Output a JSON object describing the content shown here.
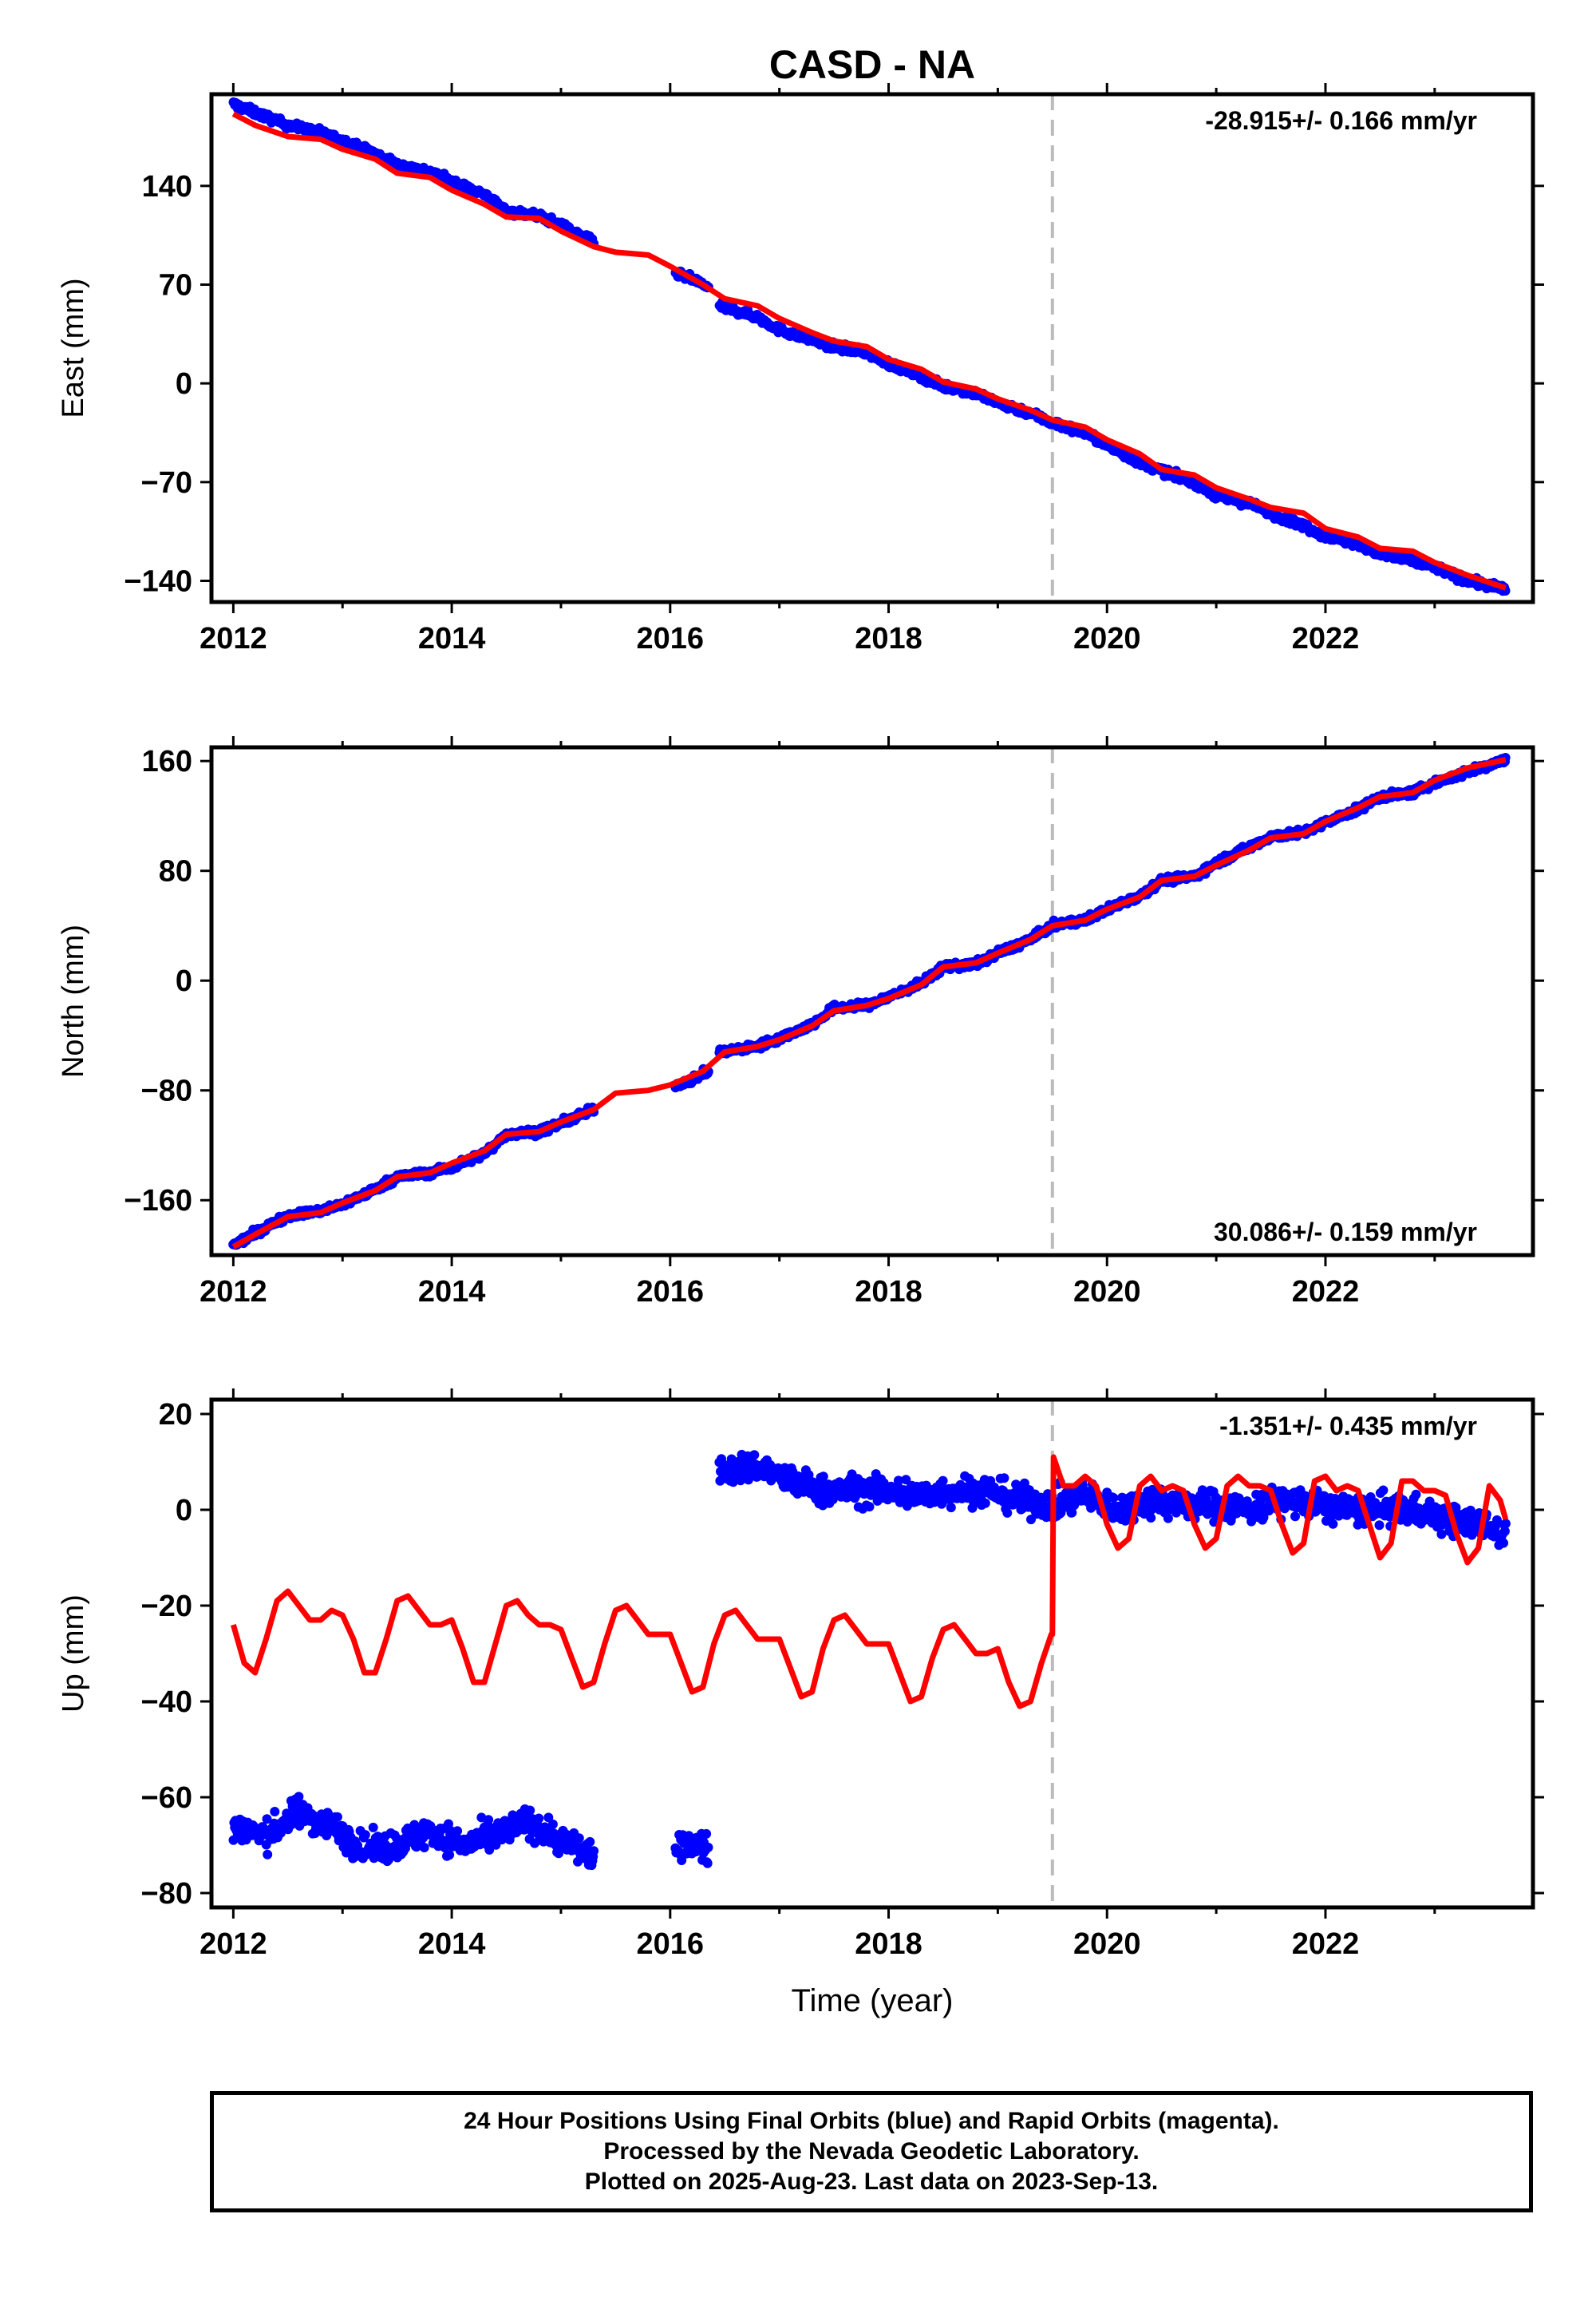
{
  "title": "CASD - NA",
  "footer": {
    "line1": "24 Hour Positions Using Final Orbits (blue) and Rapid Orbits (magenta).",
    "line2": "Processed by the Nevada Geodetic Laboratory.",
    "line3": "Plotted on 2025-Aug-23. Last data on 2023-Sep-13."
  },
  "colors": {
    "points": "#0000ff",
    "model": "#ff0000",
    "event_line": "#bbbbbb",
    "frame": "#000000"
  },
  "chart_data": [
    {
      "type": "scatter",
      "component": "East",
      "ylabel": "East (mm)",
      "xlabel": "",
      "xlim": [
        2011.8,
        2023.9
      ],
      "ylim": [
        -155,
        205
      ],
      "xticks": [
        2012,
        2014,
        2016,
        2018,
        2020,
        2022
      ],
      "yticks": [
        -140,
        -70,
        0,
        70,
        140
      ],
      "rate_label": "-28.915+/- 0.166 mm/yr",
      "rate_label_position": "top-right",
      "event_line_x": 2019.5,
      "grid": false,
      "series": [
        {
          "kind": "points",
          "segments": [
            {
              "x": [
                2012.0,
                2012.2,
                2012.5,
                2012.8,
                2013.0,
                2013.3,
                2013.5,
                2013.8,
                2014.0,
                2014.3,
                2014.5,
                2014.8,
                2015.0,
                2015.3
              ],
              "y": [
                198,
                192,
                183,
                178,
                172,
                163,
                155,
                150,
                143,
                134,
                122,
                119,
                112,
                100
              ]
            },
            {
              "x": [
                2016.05,
                2016.2,
                2016.35
              ],
              "y": [
                78,
                74,
                68
              ]
            },
            {
              "x": [
                2016.45,
                2016.8,
                2017.0,
                2017.3,
                2017.5,
                2017.8,
                2018.0,
                2018.3,
                2018.5,
                2018.8,
                2019.0,
                2019.3,
                2019.5,
                2019.8,
                2020.0,
                2020.3,
                2020.5,
                2020.8,
                2021.0,
                2021.3,
                2021.5,
                2021.8,
                2022.0,
                2022.3,
                2022.5,
                2022.8,
                2023.0,
                2023.3,
                2023.65
              ],
              "y": [
                55,
                47,
                38,
                31,
                26,
                22,
                14,
                5,
                -2,
                -7,
                -14,
                -21,
                -28,
                -35,
                -44,
                -56,
                -62,
                -70,
                -80,
                -85,
                -92,
                -101,
                -108,
                -114,
                -121,
                -126,
                -130,
                -140,
                -146
              ]
            }
          ],
          "noise_mm": 2.5
        },
        {
          "kind": "model_line",
          "x": [
            2012.0,
            2012.2,
            2012.5,
            2012.8,
            2013.0,
            2013.3,
            2013.5,
            2013.8,
            2014.0,
            2014.3,
            2014.5,
            2014.8,
            2015.0,
            2015.3,
            2015.5,
            2015.8,
            2016.0,
            2016.3,
            2016.5,
            2016.8,
            2017.0,
            2017.3,
            2017.5,
            2017.8,
            2018.0,
            2018.3,
            2018.5,
            2018.8,
            2019.0,
            2019.3,
            2019.5,
            2019.8,
            2020.0,
            2020.3,
            2020.5,
            2020.8,
            2021.0,
            2021.3,
            2021.5,
            2021.8,
            2022.0,
            2022.3,
            2022.5,
            2022.8,
            2023.0,
            2023.3,
            2023.65
          ],
          "y": [
            191,
            183,
            175,
            173,
            166,
            159,
            149,
            146,
            137,
            127,
            118,
            117,
            108,
            97,
            93,
            91,
            83,
            70,
            60,
            55,
            46,
            36,
            30,
            26,
            17,
            10,
            1,
            -4,
            -11,
            -19,
            -26,
            -31,
            -40,
            -50,
            -61,
            -65,
            -74,
            -82,
            -88,
            -92,
            -103,
            -109,
            -117,
            -119,
            -127,
            -136,
            -145
          ]
        }
      ]
    },
    {
      "type": "scatter",
      "component": "North",
      "ylabel": "North (mm)",
      "xlabel": "",
      "xlim": [
        2011.8,
        2023.9
      ],
      "ylim": [
        -200,
        170
      ],
      "xticks": [
        2012,
        2014,
        2016,
        2018,
        2020,
        2022
      ],
      "yticks": [
        -160,
        -80,
        0,
        80,
        160
      ],
      "rate_label": "30.086+/- 0.159 mm/yr",
      "rate_label_position": "bottom-right",
      "event_line_x": 2019.5,
      "grid": false,
      "series": [
        {
          "kind": "points",
          "segments": [
            {
              "x": [
                2012.0,
                2012.2,
                2012.5,
                2012.8,
                2013.0,
                2013.3,
                2013.5,
                2013.8,
                2014.0,
                2014.3,
                2014.5,
                2014.8,
                2015.0,
                2015.3
              ],
              "y": [
                -193,
                -184,
                -171,
                -168,
                -163,
                -152,
                -143,
                -140,
                -136,
                -126,
                -112,
                -110,
                -104,
                -94
              ]
            },
            {
              "x": [
                2016.05,
                2016.2,
                2016.35
              ],
              "y": [
                -76,
                -72,
                -66
              ]
            },
            {
              "x": [
                2016.45,
                2016.8,
                2017.0,
                2017.3,
                2017.5,
                2017.8,
                2018.0,
                2018.3,
                2018.5,
                2018.8,
                2019.0,
                2019.3,
                2019.5,
                2019.8,
                2020.0,
                2020.3,
                2020.5,
                2020.8,
                2021.0,
                2021.3,
                2021.5,
                2021.8,
                2022.0,
                2022.3,
                2022.5,
                2022.8,
                2023.0,
                2023.3,
                2023.65
              ],
              "y": [
                -52,
                -48,
                -42,
                -32,
                -20,
                -18,
                -12,
                -2,
                10,
                12,
                20,
                30,
                40,
                44,
                52,
                62,
                73,
                76,
                86,
                97,
                105,
                108,
                115,
                125,
                134,
                137,
                144,
                152,
                161
              ]
            }
          ],
          "noise_mm": 2.5
        },
        {
          "kind": "model_line",
          "x": [
            2012.0,
            2012.2,
            2012.5,
            2012.8,
            2013.0,
            2013.3,
            2013.5,
            2013.8,
            2014.0,
            2014.3,
            2014.5,
            2014.8,
            2015.0,
            2015.3,
            2015.5,
            2015.8,
            2016.0,
            2016.3,
            2016.5,
            2016.8,
            2017.0,
            2017.3,
            2017.5,
            2017.8,
            2018.0,
            2018.3,
            2018.5,
            2018.8,
            2019.0,
            2019.3,
            2019.5,
            2019.8,
            2020.0,
            2020.3,
            2020.5,
            2020.8,
            2021.0,
            2021.3,
            2021.5,
            2021.8,
            2022.0,
            2022.3,
            2022.5,
            2022.8,
            2023.0,
            2023.3,
            2023.65
          ],
          "y": [
            -194,
            -185,
            -172,
            -169,
            -162,
            -153,
            -143,
            -140,
            -133,
            -124,
            -112,
            -110,
            -103,
            -94,
            -82,
            -80,
            -76,
            -66,
            -52,
            -48,
            -43,
            -33,
            -22,
            -18,
            -13,
            -3,
            10,
            13,
            20,
            30,
            40,
            44,
            52,
            61,
            73,
            76,
            84,
            95,
            104,
            107,
            116,
            126,
            134,
            137,
            146,
            155,
            161
          ]
        }
      ]
    },
    {
      "type": "scatter",
      "component": "Up",
      "ylabel": "Up (mm)",
      "xlabel": "Time (year)",
      "xlim": [
        2011.8,
        2023.9
      ],
      "ylim": [
        -83,
        23
      ],
      "xticks": [
        2012,
        2014,
        2016,
        2018,
        2020,
        2022
      ],
      "yticks": [
        -80,
        -60,
        -40,
        -20,
        0,
        20
      ],
      "rate_label": "-1.351+/- 0.435 mm/yr",
      "rate_label_position": "top-right",
      "event_line_x": 2019.5,
      "grid": false,
      "series": [
        {
          "kind": "points",
          "segments": [
            {
              "x": [
                2012.0,
                2012.3,
                2012.6,
                2012.9,
                2013.2,
                2013.5,
                2013.8,
                2014.1,
                2014.4,
                2014.7,
                2015.0,
                2015.3
              ],
              "y": [
                -66,
                -68,
                -63,
                -66,
                -71,
                -70,
                -67,
                -70,
                -68,
                -65,
                -69,
                -72
              ]
            },
            {
              "x": [
                2016.05,
                2016.2,
                2016.35
              ],
              "y": [
                -72,
                -69,
                -71
              ]
            },
            {
              "x": [
                2016.45,
                2016.8,
                2017.1,
                2017.4,
                2017.7,
                2018.0,
                2018.3,
                2018.6,
                2018.9,
                2019.2,
                2019.5,
                2019.8,
                2020.1,
                2020.4,
                2020.7,
                2021.0,
                2021.3,
                2021.6,
                2021.9,
                2022.2,
                2022.5,
                2022.8,
                2023.1,
                2023.4,
                2023.65
              ],
              "y": [
                8,
                9,
                6,
                4,
                4,
                4,
                3,
                4,
                4,
                2,
                1,
                3,
                0,
                2,
                1,
                1,
                0,
                2,
                1,
                0,
                0,
                0,
                -2,
                -3,
                -5
              ]
            }
          ],
          "noise_mm": 3.0
        },
        {
          "kind": "model_line",
          "x": [
            2012.0,
            2012.1,
            2012.2,
            2012.3,
            2012.4,
            2012.5,
            2012.6,
            2012.7,
            2012.8,
            2012.9,
            2013.0,
            2013.1,
            2013.2,
            2013.3,
            2013.4,
            2013.5,
            2013.6,
            2013.7,
            2013.8,
            2013.9,
            2014.0,
            2014.1,
            2014.2,
            2014.3,
            2014.4,
            2014.5,
            2014.6,
            2014.7,
            2014.8,
            2014.9,
            2015.0,
            2015.1,
            2015.2,
            2015.3,
            2015.4,
            2015.5,
            2015.6,
            2015.7,
            2015.8,
            2015.9,
            2016.0,
            2016.1,
            2016.2,
            2016.3,
            2016.4,
            2016.5,
            2016.6,
            2016.7,
            2016.8,
            2016.9,
            2017.0,
            2017.1,
            2017.2,
            2017.3,
            2017.4,
            2017.5,
            2017.6,
            2017.7,
            2017.8,
            2017.9,
            2018.0,
            2018.1,
            2018.2,
            2018.3,
            2018.4,
            2018.5,
            2018.6,
            2018.7,
            2018.8,
            2018.9,
            2019.0,
            2019.1,
            2019.2,
            2019.3,
            2019.4,
            2019.49,
            2019.5,
            2019.51,
            2019.6,
            2019.7,
            2019.8,
            2019.9,
            2020.0,
            2020.1,
            2020.2,
            2020.3,
            2020.4,
            2020.5,
            2020.6,
            2020.7,
            2020.8,
            2020.9,
            2021.0,
            2021.1,
            2021.2,
            2021.3,
            2021.4,
            2021.5,
            2021.6,
            2021.7,
            2021.8,
            2021.9,
            2022.0,
            2022.1,
            2022.2,
            2022.3,
            2022.4,
            2022.5,
            2022.6,
            2022.7,
            2022.8,
            2022.9,
            2023.0,
            2023.1,
            2023.2,
            2023.3,
            2023.4,
            2023.5,
            2023.6,
            2023.65
          ],
          "y": [
            -24,
            -32,
            -34,
            -27,
            -19,
            -17,
            -20,
            -23,
            -23,
            -21,
            -22,
            -27,
            -34,
            -34,
            -27,
            -19,
            -18,
            -21,
            -24,
            -24,
            -23,
            -29,
            -36,
            -36,
            -28,
            -20,
            -19,
            -22,
            -24,
            -24,
            -25,
            -31,
            -37,
            -36,
            -28,
            -21,
            -20,
            -23,
            -26,
            -26,
            -26,
            -32,
            -38,
            -37,
            -28,
            -22,
            -21,
            -24,
            -27,
            -27,
            -27,
            -33,
            -39,
            -38,
            -29,
            -23,
            -22,
            -25,
            -28,
            -28,
            -28,
            -34,
            -40,
            -39,
            -31,
            -25,
            -24,
            -27,
            -30,
            -30,
            -29,
            -36,
            -41,
            -40,
            -32,
            -26,
            -26,
            11,
            5,
            5,
            7,
            5,
            -3,
            -8,
            -6,
            5,
            7,
            4,
            5,
            4,
            -3,
            -8,
            -6,
            5,
            7,
            5,
            5,
            4,
            -3,
            -9,
            -7,
            6,
            7,
            4,
            5,
            4,
            -3,
            -10,
            -7,
            6,
            6,
            4,
            4,
            3,
            -5,
            -11,
            -8,
            5,
            2,
            -2
          ]
        }
      ]
    }
  ]
}
